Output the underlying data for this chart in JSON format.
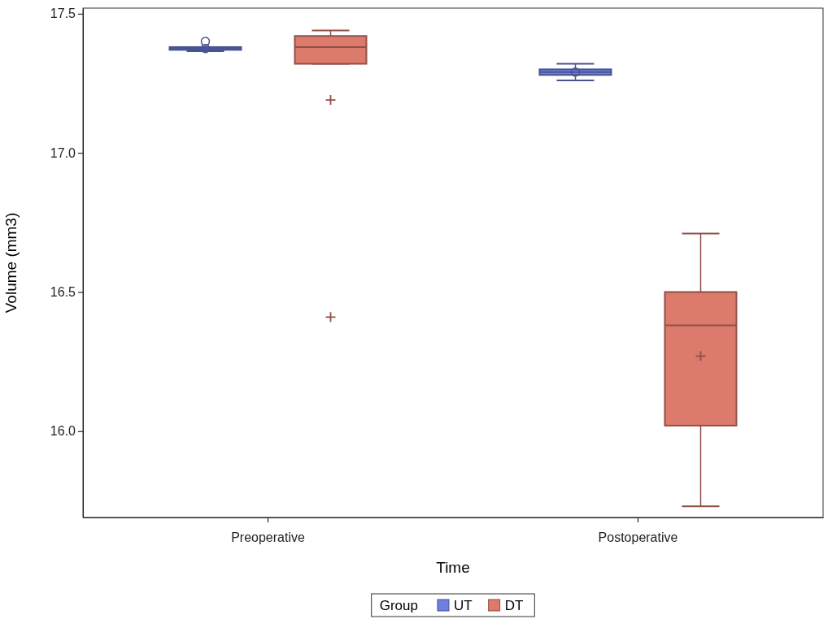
{
  "chart_data": {
    "type": "box",
    "xlabel": "Time",
    "ylabel": "Volume (mm3)",
    "legend_title": "Group",
    "legend": "bottom",
    "grid": false,
    "categories": [
      "Preoperative",
      "Postoperative"
    ],
    "ylim": [
      15.69,
      17.52
    ],
    "yticks": [
      {
        "value": 16,
        "label": "16.0"
      },
      16.5,
      {
        "value": 17,
        "label": "17.0"
      },
      17.5
    ],
    "series": [
      {
        "name": "UT",
        "color": "#6f7fe0",
        "marker": "circle",
        "boxes": [
          {
            "low": 17.365,
            "q1": 17.37,
            "median": 17.375,
            "q3": 17.38,
            "high": 17.38,
            "mean": 17.375,
            "outliers": [
              17.4
            ]
          },
          {
            "low": 17.26,
            "q1": 17.28,
            "median": 17.29,
            "q3": 17.3,
            "high": 17.32,
            "mean": 17.29
          }
        ]
      },
      {
        "name": "DT",
        "color": "#dc7b6b",
        "marker": "cross",
        "boxes": [
          {
            "low": 17.32,
            "q1": 17.32,
            "median": 17.38,
            "q3": 17.42,
            "high": 17.44,
            "mean": 17.19,
            "outliers": [
              16.41
            ]
          },
          {
            "low": 15.73,
            "q1": 16.02,
            "median": 16.38,
            "q3": 16.5,
            "high": 16.71,
            "mean": 16.27
          }
        ]
      }
    ]
  }
}
